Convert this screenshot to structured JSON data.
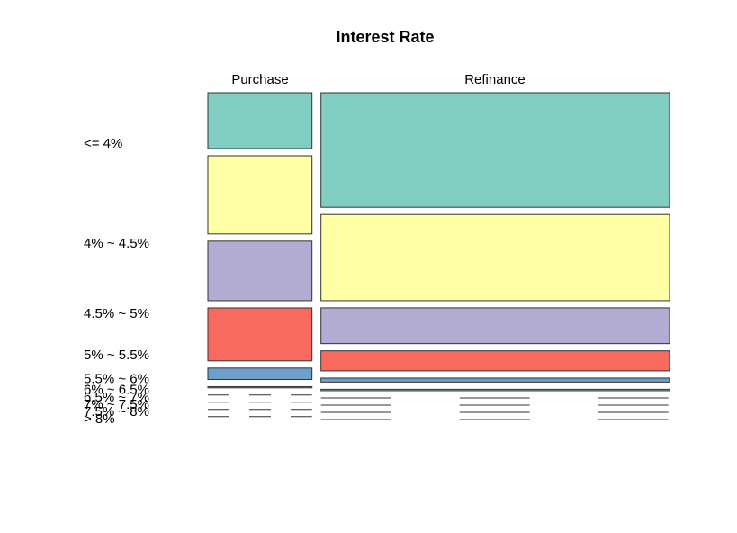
{
  "chart_data": {
    "type": "mosaic",
    "title": "Interest Rate",
    "columns": [
      "Purchase",
      "Refinance"
    ],
    "column_shares": [
      0.23,
      0.77
    ],
    "rows": [
      "<= 4%",
      "4% ~ 4.5%",
      "4.5% ~ 5%",
      "5% ~ 5.5%",
      "5.5% ~ 6%",
      "6% ~ 6.5%",
      "6.5% ~ 7%",
      "7% ~ 7.5%",
      "7.5% ~ 8%",
      "> 8%"
    ],
    "row_colors": [
      "#80CDC1",
      "#FFFFA6",
      "#B2ABD2",
      "#F86A60",
      "#6D9FC9",
      "#80CDC1",
      "#FFFFA6",
      "#B2ABD2",
      "#F86A60",
      "#6D9FC9"
    ],
    "proportions": {
      "Purchase": [
        0.195,
        0.273,
        0.208,
        0.185,
        0.04,
        0.004,
        0.0,
        0.0,
        0.0,
        0.0
      ],
      "Refinance": [
        0.4,
        0.301,
        0.125,
        0.07,
        0.014,
        0.005,
        0.0,
        0.0,
        0.0,
        0.0
      ]
    }
  }
}
